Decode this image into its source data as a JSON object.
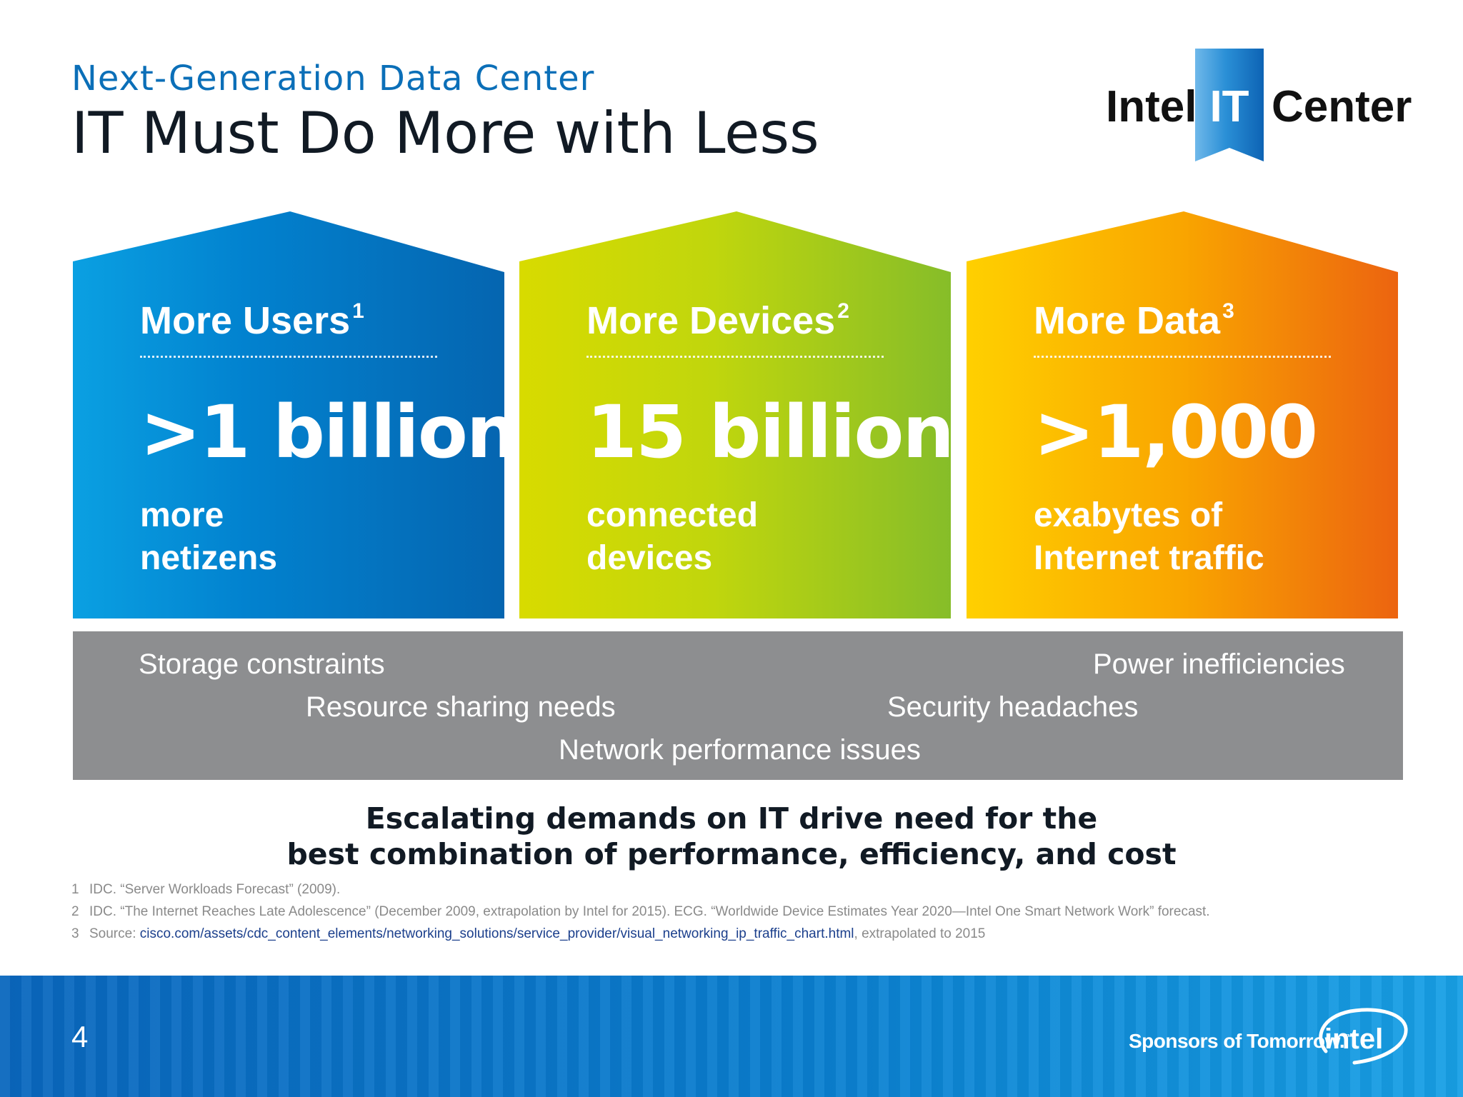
{
  "header": {
    "subtitle": "Next-Generation Data Center",
    "title": "IT Must Do More with Less"
  },
  "logo": {
    "word1": "Intel",
    "word2": "IT",
    "word3": "Center"
  },
  "houses": [
    {
      "label": "More Users",
      "sup": "1",
      "value": ">1 billion",
      "desc_line1": "more",
      "desc_line2": "netizens"
    },
    {
      "label": "More Devices",
      "sup": "2",
      "value": "15 billion",
      "desc_line1": "connected",
      "desc_line2": "devices"
    },
    {
      "label": "More Data",
      "sup": "3",
      "value": ">1,000",
      "desc_line1": "exabytes of",
      "desc_line2": "Internet traffic"
    }
  ],
  "pain_points": {
    "storage": "Storage constraints",
    "power": "Power inefficiencies",
    "resource": "Resource sharing needs",
    "security": "Security headaches",
    "network": "Network performance issues"
  },
  "tagline": {
    "line1": "Escalating demands on IT drive need for the",
    "line2": "best combination of performance, efficiency, and cost"
  },
  "footnotes": {
    "n1": {
      "num": "1",
      "text": "IDC. “Server Workloads Forecast” (2009)."
    },
    "n2": {
      "num": "2",
      "text": "IDC. “The Internet Reaches Late Adolescence” (December 2009, extrapolation by Intel for 2015). ECG. “Worldwide Device Estimates Year 2020—Intel One Smart Network Work” forecast."
    },
    "n3": {
      "num": "3",
      "prefix": "Source: ",
      "link": "cisco.com/assets/cdc_content_elements/networking_solutions/service_provider/visual_networking_ip_traffic_chart.html",
      "suffix": ", extrapolated to 2015"
    }
  },
  "footer": {
    "page_number": "4",
    "slogan": "Sponsors of Tomorrow.",
    "slogan_tm": "™",
    "brand": "intel"
  },
  "colors": {
    "subtitle_blue": "#0b6fb8",
    "users_gradient": [
      "#0aa0e2",
      "#0565b0"
    ],
    "devices_gradient": [
      "#d8db00",
      "#86bd29"
    ],
    "data_gradient": [
      "#ffd000",
      "#ec6410"
    ],
    "band_gray": "#8d8e90",
    "footer_blue": "#0a7fd0"
  }
}
